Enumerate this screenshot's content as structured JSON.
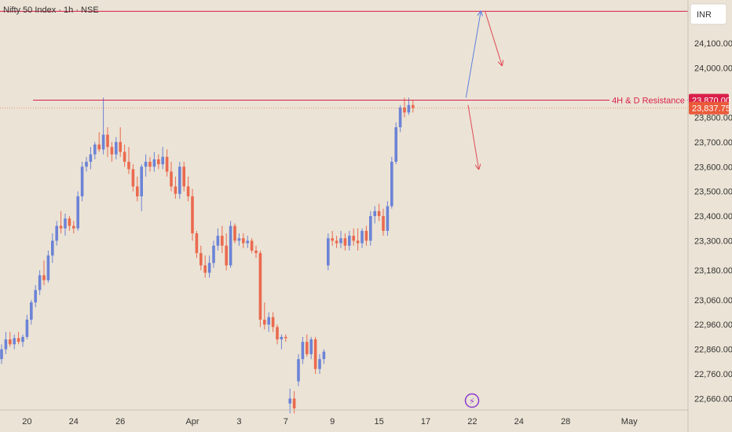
{
  "header": {
    "title": "Nifty 50 Index · 1h · NSE"
  },
  "currency_button": {
    "label": "INR"
  },
  "event_icon": {
    "glyph": "⚡"
  },
  "colors": {
    "up": "#6c83d6",
    "down": "#ea6a4f",
    "resistance": "#d8204a",
    "current": "#ea5a3a",
    "bg": "#ebe3d5"
  },
  "chart_data": {
    "type": "candlestick",
    "title": "",
    "y_axis": {
      "range": [
        22620,
        24260
      ],
      "ticks": [
        {
          "value": 24100,
          "label": "24,100.00"
        },
        {
          "value": 24000,
          "label": "24,000.00"
        },
        {
          "value": 23800,
          "label": "23,800.00"
        },
        {
          "value": 23700,
          "label": "23,700.00"
        },
        {
          "value": 23600,
          "label": "23,600.00"
        },
        {
          "value": 23500,
          "label": "23,500.00"
        },
        {
          "value": 23400,
          "label": "23,400.00"
        },
        {
          "value": 23300,
          "label": "23,300.00"
        },
        {
          "value": 23180,
          "label": "23,180.00"
        },
        {
          "value": 23060,
          "label": "23,060.00"
        },
        {
          "value": 22960,
          "label": "22,960.00"
        },
        {
          "value": 22860,
          "label": "22,860.00"
        },
        {
          "value": 22760,
          "label": "22,760.00"
        },
        {
          "value": 22660,
          "label": "22,660.00"
        }
      ]
    },
    "x_axis": {
      "labels": [
        {
          "label": "20",
          "index": 6
        },
        {
          "label": "24",
          "index": 17
        },
        {
          "label": "26",
          "index": 28
        },
        {
          "label": "Apr",
          "index": 45
        },
        {
          "label": "3",
          "index": 56
        },
        {
          "label": "7",
          "index": 67
        },
        {
          "label": "9",
          "index": 78
        },
        {
          "label": "15",
          "index": 89
        },
        {
          "label": "17",
          "index": 100
        },
        {
          "label": "22",
          "index": 111
        },
        {
          "label": "24",
          "index": 122
        },
        {
          "label": "28",
          "index": 133
        },
        {
          "label": "May",
          "index": 148
        }
      ]
    },
    "reference_lines": [
      {
        "name": "upper-level",
        "value": 24230,
        "label": ""
      },
      {
        "name": "4h-d-resistance",
        "value": 23870,
        "label": "4H & D Resistance",
        "price_label": "23,870.00"
      }
    ],
    "current_price": {
      "value": 23837.75,
      "label": "23,837.75"
    },
    "projections": [
      {
        "name": "breakout-up",
        "from": [
          109.5,
          23880
        ],
        "to": [
          113,
          24230
        ]
      },
      {
        "name": "retest-down",
        "from": [
          114,
          24230
        ],
        "to": [
          118,
          24010
        ]
      },
      {
        "name": "rejection-down",
        "from": [
          110,
          23850
        ],
        "to": [
          112.5,
          23590
        ]
      }
    ],
    "candles": [
      [
        22820,
        22880,
        22800,
        22860
      ],
      [
        22860,
        22930,
        22840,
        22900
      ],
      [
        22900,
        22930,
        22870,
        22880
      ],
      [
        22880,
        22920,
        22860,
        22905
      ],
      [
        22905,
        22930,
        22880,
        22890
      ],
      [
        22890,
        22920,
        22870,
        22910
      ],
      [
        22910,
        23000,
        22900,
        22980
      ],
      [
        22980,
        23060,
        22960,
        23050
      ],
      [
        23050,
        23120,
        23030,
        23100
      ],
      [
        23100,
        23180,
        23080,
        23160
      ],
      [
        23160,
        23220,
        23120,
        23140
      ],
      [
        23140,
        23260,
        23130,
        23240
      ],
      [
        23240,
        23330,
        23210,
        23300
      ],
      [
        23300,
        23380,
        23280,
        23360
      ],
      [
        23360,
        23420,
        23330,
        23350
      ],
      [
        23350,
        23410,
        23320,
        23390
      ],
      [
        23390,
        23400,
        23340,
        23360
      ],
      [
        23360,
        23380,
        23330,
        23350
      ],
      [
        23350,
        23500,
        23340,
        23480
      ],
      [
        23480,
        23620,
        23460,
        23600
      ],
      [
        23600,
        23640,
        23580,
        23620
      ],
      [
        23620,
        23680,
        23590,
        23650
      ],
      [
        23650,
        23700,
        23630,
        23690
      ],
      [
        23690,
        23740,
        23660,
        23670
      ],
      [
        23670,
        23880,
        23650,
        23730
      ],
      [
        23730,
        23760,
        23640,
        23680
      ],
      [
        23680,
        23700,
        23620,
        23650
      ],
      [
        23650,
        23720,
        23630,
        23700
      ],
      [
        23700,
        23760,
        23640,
        23660
      ],
      [
        23660,
        23690,
        23600,
        23620
      ],
      [
        23620,
        23680,
        23570,
        23590
      ],
      [
        23590,
        23610,
        23500,
        23520
      ],
      [
        23520,
        23560,
        23460,
        23480
      ],
      [
        23480,
        23610,
        23420,
        23600
      ],
      [
        23600,
        23650,
        23560,
        23620
      ],
      [
        23620,
        23640,
        23580,
        23600
      ],
      [
        23600,
        23660,
        23580,
        23630
      ],
      [
        23630,
        23650,
        23590,
        23610
      ],
      [
        23610,
        23680,
        23590,
        23640
      ],
      [
        23640,
        23670,
        23560,
        23580
      ],
      [
        23580,
        23620,
        23500,
        23520
      ],
      [
        23520,
        23560,
        23470,
        23490
      ],
      [
        23490,
        23620,
        23470,
        23600
      ],
      [
        23600,
        23620,
        23500,
        23520
      ],
      [
        23520,
        23560,
        23460,
        23480
      ],
      [
        23480,
        23510,
        23300,
        23330
      ],
      [
        23330,
        23340,
        23230,
        23250
      ],
      [
        23250,
        23280,
        23180,
        23200
      ],
      [
        23200,
        23240,
        23150,
        23170
      ],
      [
        23170,
        23240,
        23150,
        23210
      ],
      [
        23210,
        23300,
        23190,
        23280
      ],
      [
        23280,
        23350,
        23260,
        23320
      ],
      [
        23320,
        23360,
        23250,
        23280
      ],
      [
        23280,
        23330,
        23180,
        23200
      ],
      [
        23200,
        23380,
        23190,
        23360
      ],
      [
        23360,
        23370,
        23290,
        23300
      ],
      [
        23300,
        23330,
        23280,
        23310
      ],
      [
        23310,
        23330,
        23270,
        23290
      ],
      [
        23290,
        23320,
        23270,
        23300
      ],
      [
        23300,
        23310,
        23250,
        23260
      ],
      [
        23260,
        23280,
        23230,
        23250
      ],
      [
        23250,
        23260,
        22950,
        22980
      ],
      [
        22980,
        23050,
        22940,
        22960
      ],
      [
        22960,
        23010,
        22930,
        22990
      ],
      [
        22990,
        23010,
        22930,
        22950
      ],
      [
        22950,
        22960,
        22880,
        22900
      ],
      [
        22900,
        22920,
        22860,
        22910
      ],
      [
        22910,
        22920,
        22890,
        22905
      ],
      [
        22640,
        22700,
        22600,
        22660
      ],
      [
        22660,
        22690,
        22600,
        22620
      ],
      [
        22730,
        22840,
        22710,
        22820
      ],
      [
        22820,
        22910,
        22800,
        22890
      ],
      [
        22890,
        22920,
        22830,
        22840
      ],
      [
        22840,
        22910,
        22820,
        22900
      ],
      [
        22900,
        22910,
        22760,
        22780
      ],
      [
        22780,
        22840,
        22760,
        22820
      ],
      [
        22820,
        22860,
        22800,
        22850
      ],
      [
        23200,
        23330,
        23180,
        23310
      ],
      [
        23310,
        23340,
        23280,
        23300
      ],
      [
        23300,
        23320,
        23270,
        23290
      ],
      [
        23290,
        23340,
        23270,
        23310
      ],
      [
        23310,
        23330,
        23260,
        23280
      ],
      [
        23280,
        23340,
        23260,
        23320
      ],
      [
        23320,
        23350,
        23280,
        23300
      ],
      [
        23300,
        23350,
        23260,
        23290
      ],
      [
        23290,
        23350,
        23270,
        23340
      ],
      [
        23340,
        23360,
        23280,
        23300
      ],
      [
        23300,
        23420,
        23280,
        23400
      ],
      [
        23400,
        23440,
        23370,
        23420
      ],
      [
        23420,
        23450,
        23380,
        23400
      ],
      [
        23400,
        23430,
        23320,
        23340
      ],
      [
        23340,
        23460,
        23320,
        23440
      ],
      [
        23440,
        23640,
        23430,
        23620
      ],
      [
        23620,
        23780,
        23610,
        23760
      ],
      [
        23760,
        23850,
        23740,
        23840
      ],
      [
        23840,
        23880,
        23800,
        23820
      ],
      [
        23820,
        23880,
        23810,
        23850
      ],
      [
        23850,
        23870,
        23820,
        23838
      ]
    ]
  }
}
